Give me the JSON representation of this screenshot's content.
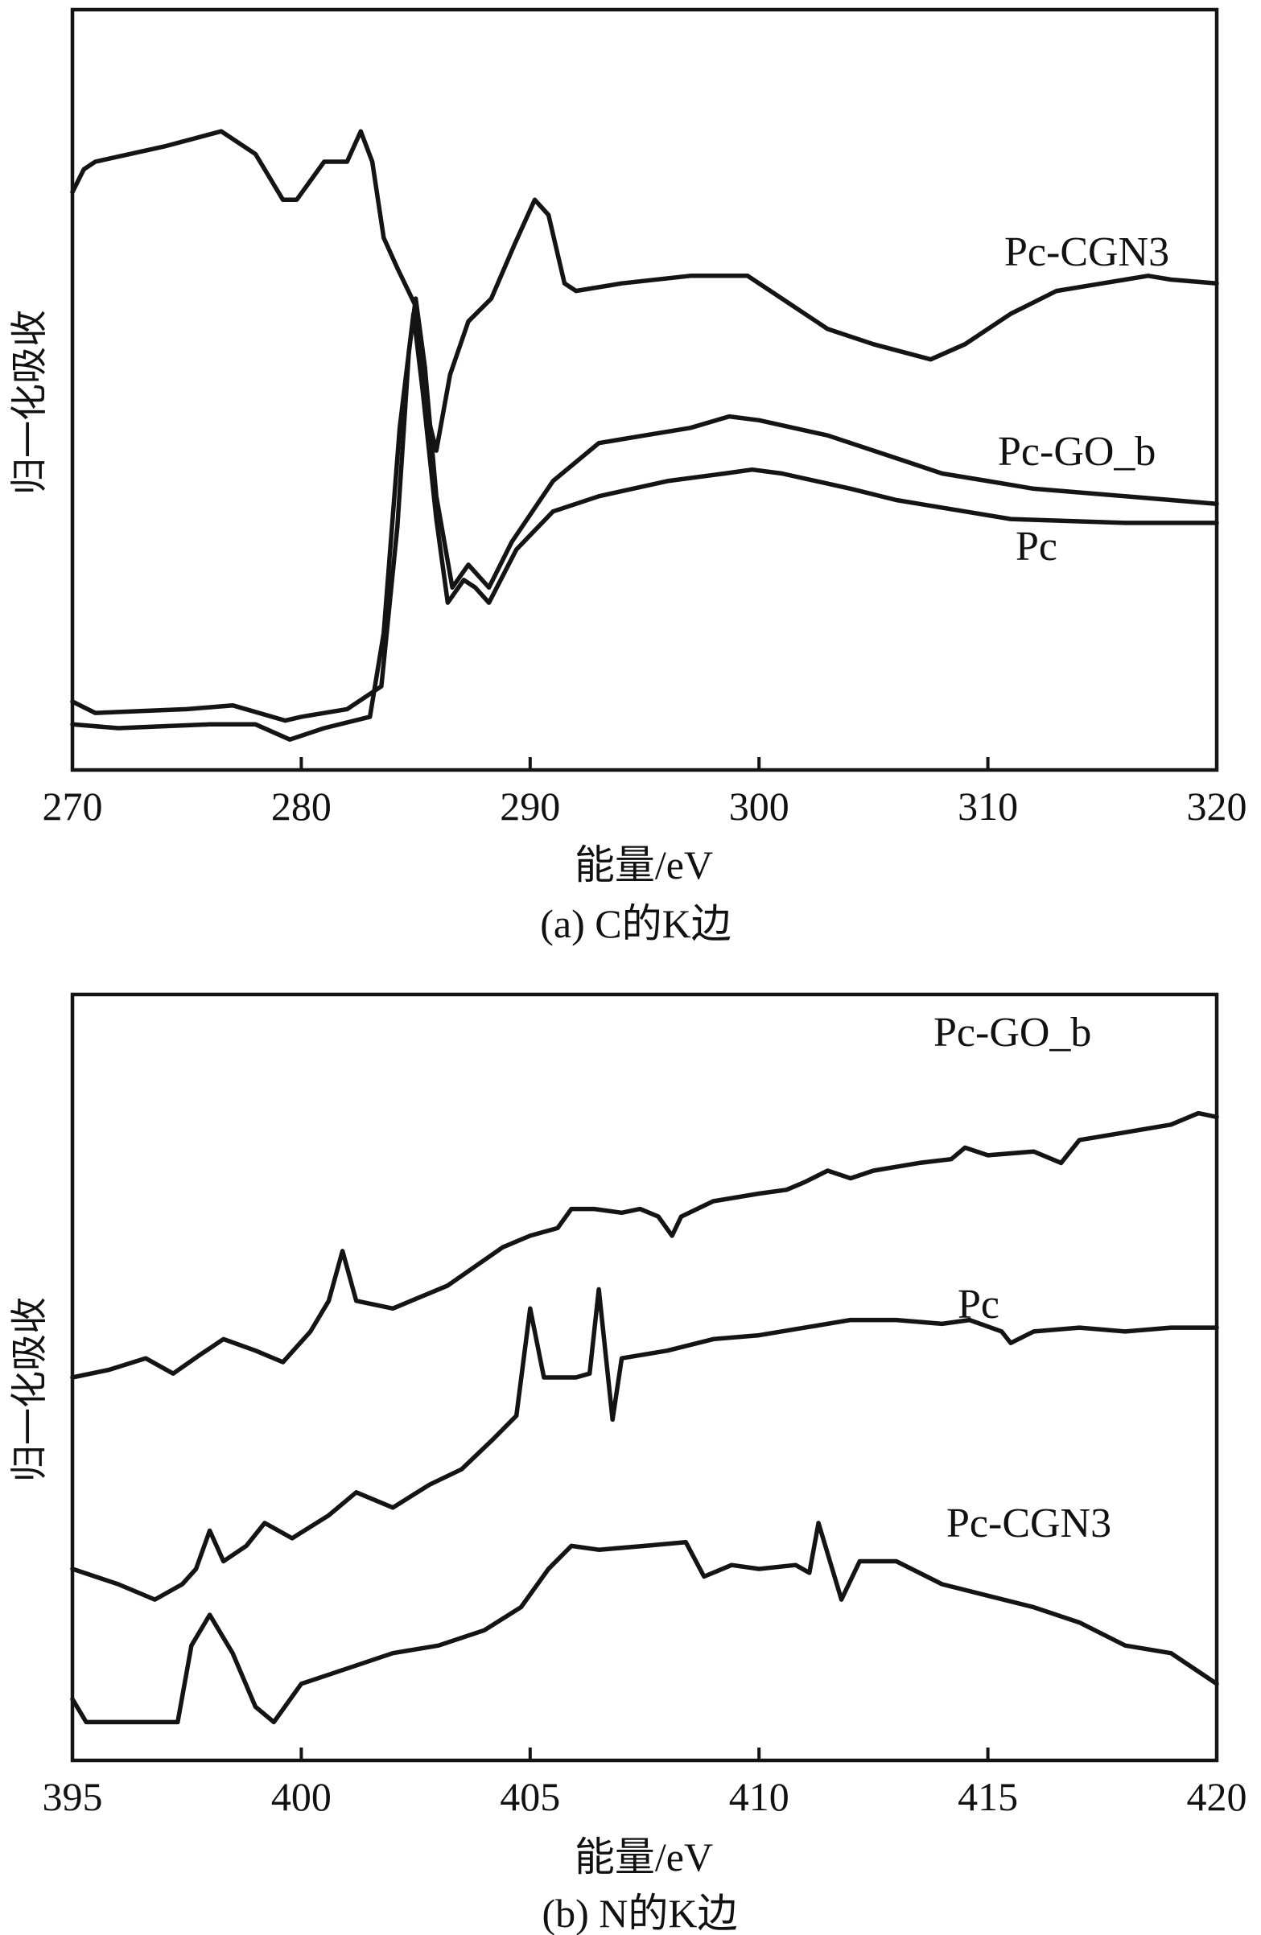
{
  "chart_data": [
    {
      "type": "line",
      "caption": "(a) C的K边",
      "xlabel": "能量/eV",
      "ylabel": "归一化吸收",
      "xlim": [
        270,
        320
      ],
      "ylim": [
        0,
        1
      ],
      "xticks": [
        270,
        280,
        290,
        300,
        310,
        320
      ],
      "series": [
        {
          "name": "Pc-CGN3",
          "points": [
            [
              270,
              0.76
            ],
            [
              270.5,
              0.79
            ],
            [
              271,
              0.8
            ],
            [
              274,
              0.82
            ],
            [
              276.5,
              0.84
            ],
            [
              278,
              0.81
            ],
            [
              279.2,
              0.75
            ],
            [
              279.8,
              0.75
            ],
            [
              281,
              0.8
            ],
            [
              282,
              0.8
            ],
            [
              282.6,
              0.84
            ],
            [
              283.1,
              0.8
            ],
            [
              283.6,
              0.7
            ],
            [
              284.2,
              0.66
            ],
            [
              285.0,
              0.61
            ],
            [
              285.4,
              0.48
            ],
            [
              285.9,
              0.42
            ],
            [
              286.5,
              0.52
            ],
            [
              287.3,
              0.59
            ],
            [
              288.3,
              0.62
            ],
            [
              289.3,
              0.69
            ],
            [
              290.2,
              0.75
            ],
            [
              290.8,
              0.73
            ],
            [
              291.5,
              0.64
            ],
            [
              292,
              0.63
            ],
            [
              294,
              0.64
            ],
            [
              297,
              0.65
            ],
            [
              299.5,
              0.65
            ],
            [
              301,
              0.62
            ],
            [
              303,
              0.58
            ],
            [
              305,
              0.56
            ],
            [
              307.5,
              0.54
            ],
            [
              309,
              0.56
            ],
            [
              311,
              0.6
            ],
            [
              313,
              0.63
            ],
            [
              315,
              0.64
            ],
            [
              317,
              0.65
            ],
            [
              318,
              0.645
            ],
            [
              320,
              0.64
            ]
          ]
        },
        {
          "name": "Pc-GO_b",
          "points": [
            [
              270,
              0.09
            ],
            [
              271,
              0.075
            ],
            [
              275,
              0.08
            ],
            [
              277,
              0.085
            ],
            [
              279.3,
              0.065
            ],
            [
              280,
              0.07
            ],
            [
              282,
              0.08
            ],
            [
              283.5,
              0.11
            ],
            [
              284.2,
              0.32
            ],
            [
              284.7,
              0.55
            ],
            [
              285.0,
              0.62
            ],
            [
              285.4,
              0.53
            ],
            [
              285.9,
              0.36
            ],
            [
              286.6,
              0.24
            ],
            [
              287.3,
              0.27
            ],
            [
              288.2,
              0.24
            ],
            [
              289.2,
              0.3
            ],
            [
              291,
              0.38
            ],
            [
              293,
              0.43
            ],
            [
              295,
              0.44
            ],
            [
              297,
              0.45
            ],
            [
              298.7,
              0.465
            ],
            [
              300,
              0.46
            ],
            [
              303,
              0.44
            ],
            [
              306,
              0.41
            ],
            [
              308,
              0.39
            ],
            [
              310,
              0.38
            ],
            [
              312,
              0.37
            ],
            [
              316,
              0.36
            ],
            [
              318,
              0.355
            ],
            [
              320,
              0.35
            ]
          ]
        },
        {
          "name": "Pc",
          "points": [
            [
              270,
              0.06
            ],
            [
              272,
              0.055
            ],
            [
              276,
              0.06
            ],
            [
              278,
              0.06
            ],
            [
              279.5,
              0.04
            ],
            [
              281,
              0.055
            ],
            [
              283,
              0.07
            ],
            [
              283.6,
              0.18
            ],
            [
              284.3,
              0.45
            ],
            [
              284.9,
              0.6
            ],
            [
              285.3,
              0.5
            ],
            [
              285.9,
              0.33
            ],
            [
              286.4,
              0.22
            ],
            [
              287.1,
              0.25
            ],
            [
              287.6,
              0.24
            ],
            [
              288.2,
              0.22
            ],
            [
              289.4,
              0.29
            ],
            [
              291,
              0.34
            ],
            [
              293,
              0.36
            ],
            [
              296,
              0.38
            ],
            [
              298.5,
              0.39
            ],
            [
              299.7,
              0.395
            ],
            [
              301,
              0.39
            ],
            [
              304,
              0.37
            ],
            [
              306,
              0.355
            ],
            [
              309,
              0.34
            ],
            [
              311,
              0.33
            ],
            [
              316,
              0.325
            ],
            [
              320,
              0.325
            ]
          ]
        }
      ]
    },
    {
      "type": "line",
      "caption": "(b) N的K边",
      "xlabel": "能量/eV",
      "ylabel": "归一化吸收",
      "xlim": [
        395,
        420
      ],
      "ylim": [
        0,
        1
      ],
      "xticks": [
        395,
        400,
        405,
        410,
        415,
        420
      ],
      "series": [
        {
          "name": "Pc-GO_b",
          "points": [
            [
              395,
              0.5
            ],
            [
              395.8,
              0.51
            ],
            [
              396.6,
              0.525
            ],
            [
              397.2,
              0.505
            ],
            [
              397.8,
              0.53
            ],
            [
              398.3,
              0.55
            ],
            [
              399,
              0.535
            ],
            [
              399.6,
              0.52
            ],
            [
              400.2,
              0.56
            ],
            [
              400.6,
              0.6
            ],
            [
              400.9,
              0.665
            ],
            [
              401.2,
              0.6
            ],
            [
              402,
              0.59
            ],
            [
              402.8,
              0.61
            ],
            [
              403.2,
              0.62
            ],
            [
              403.8,
              0.645
            ],
            [
              404.4,
              0.67
            ],
            [
              405,
              0.685
            ],
            [
              405.6,
              0.695
            ],
            [
              405.9,
              0.72
            ],
            [
              406.4,
              0.72
            ],
            [
              407,
              0.715
            ],
            [
              407.4,
              0.72
            ],
            [
              407.8,
              0.71
            ],
            [
              408.1,
              0.685
            ],
            [
              408.3,
              0.71
            ],
            [
              409,
              0.73
            ],
            [
              410,
              0.74
            ],
            [
              410.6,
              0.745
            ],
            [
              411,
              0.755
            ],
            [
              411.5,
              0.77
            ],
            [
              412,
              0.76
            ],
            [
              412.5,
              0.77
            ],
            [
              413.5,
              0.78
            ],
            [
              414.2,
              0.785
            ],
            [
              414.5,
              0.8
            ],
            [
              415,
              0.79
            ],
            [
              416,
              0.795
            ],
            [
              416.6,
              0.78
            ],
            [
              417,
              0.81
            ],
            [
              418,
              0.82
            ],
            [
              419,
              0.83
            ],
            [
              419.6,
              0.845
            ],
            [
              420,
              0.84
            ]
          ]
        },
        {
          "name": "Pc",
          "points": [
            [
              395,
              0.25
            ],
            [
              396,
              0.23
            ],
            [
              396.8,
              0.21
            ],
            [
              397.4,
              0.23
            ],
            [
              397.7,
              0.25
            ],
            [
              398,
              0.3
            ],
            [
              398.3,
              0.26
            ],
            [
              398.8,
              0.28
            ],
            [
              399.2,
              0.31
            ],
            [
              399.8,
              0.29
            ],
            [
              400.6,
              0.32
            ],
            [
              401.2,
              0.35
            ],
            [
              402,
              0.33
            ],
            [
              402.8,
              0.36
            ],
            [
              403.5,
              0.38
            ],
            [
              404.2,
              0.42
            ],
            [
              404.7,
              0.45
            ],
            [
              405.0,
              0.59
            ],
            [
              405.3,
              0.5
            ],
            [
              406,
              0.5
            ],
            [
              406.3,
              0.505
            ],
            [
              406.5,
              0.615
            ],
            [
              406.8,
              0.445
            ],
            [
              407,
              0.525
            ],
            [
              408,
              0.535
            ],
            [
              409,
              0.55
            ],
            [
              410,
              0.555
            ],
            [
              411,
              0.565
            ],
            [
              412,
              0.575
            ],
            [
              413,
              0.575
            ],
            [
              414,
              0.57
            ],
            [
              414.6,
              0.575
            ],
            [
              415.3,
              0.56
            ],
            [
              415.5,
              0.545
            ],
            [
              416,
              0.56
            ],
            [
              417,
              0.565
            ],
            [
              418,
              0.56
            ],
            [
              419,
              0.565
            ],
            [
              420,
              0.565
            ]
          ]
        },
        {
          "name": "Pc-CGN3",
          "points": [
            [
              395,
              0.08
            ],
            [
              395.3,
              0.05
            ],
            [
              396,
              0.05
            ],
            [
              397.3,
              0.05
            ],
            [
              397.6,
              0.15
            ],
            [
              398,
              0.19
            ],
            [
              398.5,
              0.14
            ],
            [
              399,
              0.07
            ],
            [
              399.4,
              0.05
            ],
            [
              400,
              0.1
            ],
            [
              401,
              0.12
            ],
            [
              402,
              0.14
            ],
            [
              403,
              0.15
            ],
            [
              404,
              0.17
            ],
            [
              404.8,
              0.2
            ],
            [
              405.4,
              0.25
            ],
            [
              405.9,
              0.28
            ],
            [
              406.5,
              0.275
            ],
            [
              407.5,
              0.28
            ],
            [
              408.4,
              0.285
            ],
            [
              408.8,
              0.24
            ],
            [
              409.4,
              0.255
            ],
            [
              410,
              0.25
            ],
            [
              410.8,
              0.255
            ],
            [
              411.1,
              0.245
            ],
            [
              411.3,
              0.31
            ],
            [
              411.6,
              0.25
            ],
            [
              411.8,
              0.21
            ],
            [
              412.2,
              0.26
            ],
            [
              413,
              0.26
            ],
            [
              414,
              0.23
            ],
            [
              415,
              0.215
            ],
            [
              416,
              0.2
            ],
            [
              417,
              0.18
            ],
            [
              418,
              0.15
            ],
            [
              419,
              0.14
            ],
            [
              420,
              0.1
            ]
          ]
        }
      ]
    }
  ]
}
